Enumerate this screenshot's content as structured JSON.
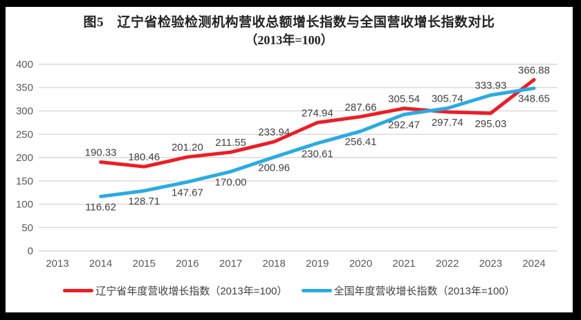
{
  "chart_data": {
    "type": "line",
    "title": "图5　辽宁省检验检测机构营收总额增长指数与全国营收增长指数对比",
    "subtitle": "（2013年=100）",
    "categories": [
      "2013",
      "2014",
      "2015",
      "2016",
      "2017",
      "2018",
      "2019",
      "2020",
      "2021",
      "2022",
      "2023",
      "2024"
    ],
    "series": [
      {
        "name": "辽宁省年度营收增长指数（2013年=100）",
        "color": "#EE1C25",
        "values": [
          null,
          190.33,
          180.46,
          201.2,
          211.55,
          233.94,
          274.94,
          287.66,
          305.54,
          297.74,
          295.03,
          366.88
        ],
        "label_positions": [
          null,
          "above",
          "above",
          "above",
          "above",
          "above",
          "above",
          "above",
          "above",
          "below",
          "below",
          "above"
        ]
      },
      {
        "name": "全国年度营收增长指数（2013年=100）",
        "color": "#29ABE2",
        "values": [
          null,
          116.62,
          128.71,
          147.67,
          170.0,
          200.96,
          230.61,
          256.41,
          292.47,
          305.74,
          333.93,
          348.65
        ],
        "label_positions": [
          null,
          "below",
          "below",
          "below",
          "below",
          "below",
          "below",
          "below",
          "below",
          "above",
          "above",
          "below"
        ]
      }
    ],
    "y_axis": {
      "min": 0,
      "max": 400,
      "step": 50
    },
    "x_axis_label": "",
    "y_axis_label": "",
    "grid": true,
    "legend_position": "bottom",
    "colors": {
      "gridline": "#D9D9D9",
      "axis_label": "#595959",
      "data_label": "#404040",
      "title": "#212121",
      "frame": "#000000",
      "background": "#FFFFFF"
    }
  }
}
